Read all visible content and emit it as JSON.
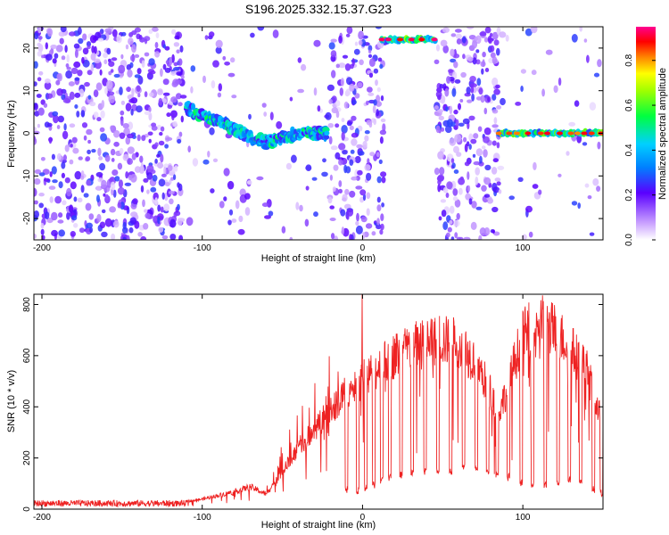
{
  "chart_data": [
    {
      "type": "heatmap",
      "title": "S196.2025.332.15.37.G23",
      "xlabel": "Height of straight line (km)",
      "ylabel": "Frequency (Hz)",
      "xlim": [
        -205,
        150
      ],
      "ylim": [
        -25,
        25
      ],
      "xticks": [
        -200,
        -100,
        0,
        100
      ],
      "xtick_labels": [
        "-200",
        "-100",
        "0",
        "100"
      ],
      "yticks": [
        -20,
        -10,
        0,
        10,
        20
      ],
      "ytick_labels": [
        "-20",
        "-10",
        "0",
        "10",
        "20"
      ],
      "colorbar": {
        "label": "Normalized spectral amplitude",
        "range": [
          0,
          0.95
        ],
        "ticks": [
          0,
          0.2,
          0.4,
          0.6,
          0.8
        ],
        "tick_labels": [
          "0.0",
          "0.2",
          "0.4",
          "0.6",
          "0.8"
        ]
      },
      "regions": [
        {
          "name": "noise",
          "x": [
            -205,
            -112
          ],
          "density": 0.55
        },
        {
          "name": "sparse",
          "x": [
            -112,
            -20
          ],
          "density": 0.08
        },
        {
          "name": "noise",
          "x": [
            -20,
            14
          ],
          "density": 0.5
        },
        {
          "name": "noise",
          "x": [
            46,
            85
          ],
          "density": 0.55
        },
        {
          "name": "sparse",
          "x": [
            85,
            150
          ],
          "density": 0.06
        }
      ],
      "tracks": [
        {
          "name": "descending-signal",
          "points": [
            [
              -110,
              6
            ],
            [
              -100,
              4
            ],
            [
              -90,
              3
            ],
            [
              -80,
              1
            ],
            [
              -70,
              -1
            ],
            [
              -60,
              -2
            ],
            [
              -50,
              -1
            ],
            [
              -40,
              0
            ],
            [
              -30,
              0
            ],
            [
              -22,
              0
            ]
          ],
          "strength": 0.45
        },
        {
          "name": "upper-band",
          "x": [
            12,
            46
          ],
          "freq": 22,
          "strength": 0.9
        },
        {
          "name": "zero-band",
          "x": [
            85,
            150
          ],
          "freq": 0,
          "strength": 0.85
        }
      ]
    },
    {
      "type": "line",
      "xlabel": "Height of straight line (km)",
      "ylabel": "SNR (10 * v/v)",
      "xlim": [
        -205,
        150
      ],
      "ylim": [
        0,
        840
      ],
      "xticks": [
        -200,
        -100,
        0,
        100
      ],
      "xtick_labels": [
        "-200",
        "-100",
        "0",
        "100"
      ],
      "yticks": [
        0,
        200,
        400,
        600,
        800
      ],
      "ytick_labels": [
        "0",
        "200",
        "400",
        "600",
        "800"
      ],
      "color": "#ee2222",
      "envelope": [
        [
          -205,
          15
        ],
        [
          -150,
          18
        ],
        [
          -120,
          22
        ],
        [
          -100,
          40
        ],
        [
          -80,
          70
        ],
        [
          -70,
          90
        ],
        [
          -60,
          60
        ],
        [
          -50,
          150
        ],
        [
          -40,
          250
        ],
        [
          -30,
          320
        ],
        [
          -20,
          400
        ],
        [
          -10,
          480
        ],
        [
          0,
          520
        ],
        [
          10,
          570
        ],
        [
          20,
          620
        ],
        [
          30,
          650
        ],
        [
          40,
          670
        ],
        [
          50,
          680
        ],
        [
          60,
          670
        ],
        [
          70,
          600
        ],
        [
          80,
          470
        ],
        [
          85,
          390
        ],
        [
          90,
          480
        ],
        [
          95,
          600
        ],
        [
          100,
          700
        ],
        [
          110,
          760
        ],
        [
          120,
          720
        ],
        [
          130,
          650
        ],
        [
          140,
          560
        ],
        [
          150,
          330
        ]
      ],
      "dips": [
        [
          -10,
          60
        ],
        [
          -3,
          60
        ],
        [
          2,
          70
        ],
        [
          7,
          80
        ],
        [
          12,
          100
        ],
        [
          17,
          110
        ],
        [
          24,
          120
        ],
        [
          31,
          130
        ],
        [
          39,
          130
        ],
        [
          47,
          140
        ],
        [
          55,
          130
        ],
        [
          63,
          150
        ],
        [
          71,
          150
        ],
        [
          78,
          130
        ],
        [
          84,
          120
        ],
        [
          91,
          110
        ],
        [
          99,
          90
        ],
        [
          106,
          80
        ],
        [
          114,
          80
        ],
        [
          122,
          90
        ],
        [
          129,
          100
        ],
        [
          136,
          90
        ],
        [
          144,
          60
        ],
        [
          149,
          50
        ]
      ]
    }
  ]
}
